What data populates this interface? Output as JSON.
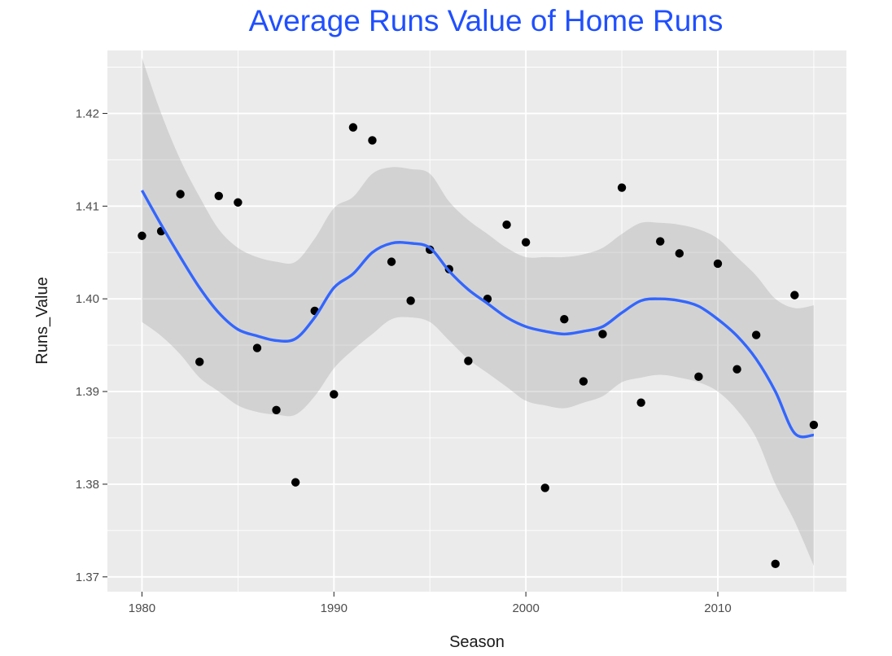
{
  "chart_data": {
    "type": "scatter",
    "title": "Average Runs Value of Home Runs",
    "xlabel": "Season",
    "ylabel": "Runs_Value",
    "xlim": [
      1978.2,
      2016.7
    ],
    "ylim": [
      1.3684,
      1.4268
    ],
    "x_ticks": [
      1980,
      1990,
      2000,
      2010
    ],
    "y_ticks": [
      1.37,
      1.38,
      1.39,
      1.4,
      1.41,
      1.42
    ],
    "x_tick_labels": [
      "1980",
      "1990",
      "2000",
      "2010"
    ],
    "y_tick_labels": [
      "1.37",
      "1.38",
      "1.39",
      "1.40",
      "1.41",
      "1.42"
    ],
    "grid": true,
    "legend": "none",
    "colors": {
      "title": "#1f4fff",
      "panel": "#ebebeb",
      "grid": "#ffffff",
      "points": "#000000",
      "smooth_line": "#3366ff",
      "confidence_band": "#999999"
    },
    "points": {
      "x": [
        1980,
        1981,
        1982,
        1983,
        1984,
        1985,
        1986,
        1987,
        1988,
        1989,
        1990,
        1991,
        1992,
        1993,
        1994,
        1995,
        1996,
        1997,
        1998,
        1999,
        2000,
        2001,
        2002,
        2003,
        2004,
        2005,
        2006,
        2007,
        2008,
        2009,
        2010,
        2011,
        2012,
        2013,
        2014,
        2015
      ],
      "y": [
        1.4068,
        1.4073,
        1.4113,
        1.3932,
        1.4111,
        1.4104,
        1.3947,
        1.388,
        1.3802,
        1.3987,
        1.3897,
        1.4185,
        1.4171,
        1.404,
        1.3998,
        1.4053,
        1.4032,
        1.3933,
        1.4,
        1.408,
        1.4061,
        1.3796,
        1.3978,
        1.3911,
        1.3962,
        1.412,
        1.3888,
        1.4062,
        1.4049,
        1.3916,
        1.4038,
        1.3924,
        1.3961,
        1.3714,
        1.4004,
        1.3864
      ]
    },
    "smooth": {
      "x": [
        1980,
        1981,
        1982,
        1983,
        1984,
        1985,
        1986,
        1987,
        1988,
        1989,
        1990,
        1991,
        1992,
        1993,
        1994,
        1995,
        1996,
        1997,
        1998,
        1999,
        2000,
        2001,
        2002,
        2003,
        2004,
        2005,
        2006,
        2007,
        2008,
        2009,
        2010,
        2011,
        2012,
        2013,
        2014,
        2015
      ],
      "y": [
        1.4117,
        1.408,
        1.4045,
        1.4012,
        1.3985,
        1.3967,
        1.396,
        1.3955,
        1.3957,
        1.398,
        1.4012,
        1.4027,
        1.405,
        1.406,
        1.406,
        1.4055,
        1.403,
        1.401,
        1.3995,
        1.398,
        1.397,
        1.3965,
        1.3962,
        1.3965,
        1.397,
        1.3985,
        1.3998,
        1.4,
        1.3998,
        1.3992,
        1.3978,
        1.396,
        1.3935,
        1.39,
        1.3855,
        1.3853
      ],
      "lower": [
        1.3975,
        1.396,
        1.394,
        1.3915,
        1.39,
        1.3885,
        1.3878,
        1.3875,
        1.3875,
        1.3895,
        1.3925,
        1.3945,
        1.3962,
        1.3978,
        1.398,
        1.3975,
        1.3955,
        1.3935,
        1.392,
        1.3905,
        1.389,
        1.3885,
        1.3882,
        1.3888,
        1.3895,
        1.391,
        1.3915,
        1.3918,
        1.3915,
        1.391,
        1.39,
        1.388,
        1.385,
        1.38,
        1.376,
        1.3712
      ],
      "upper": [
        1.426,
        1.42,
        1.415,
        1.411,
        1.4075,
        1.4055,
        1.4045,
        1.404,
        1.404,
        1.4065,
        1.4098,
        1.411,
        1.4135,
        1.4142,
        1.414,
        1.4135,
        1.4105,
        1.4085,
        1.407,
        1.4055,
        1.4045,
        1.4045,
        1.4045,
        1.4048,
        1.4055,
        1.407,
        1.4082,
        1.4082,
        1.408,
        1.4075,
        1.4065,
        1.4045,
        1.4025,
        1.4,
        1.399,
        1.3993
      ]
    }
  }
}
